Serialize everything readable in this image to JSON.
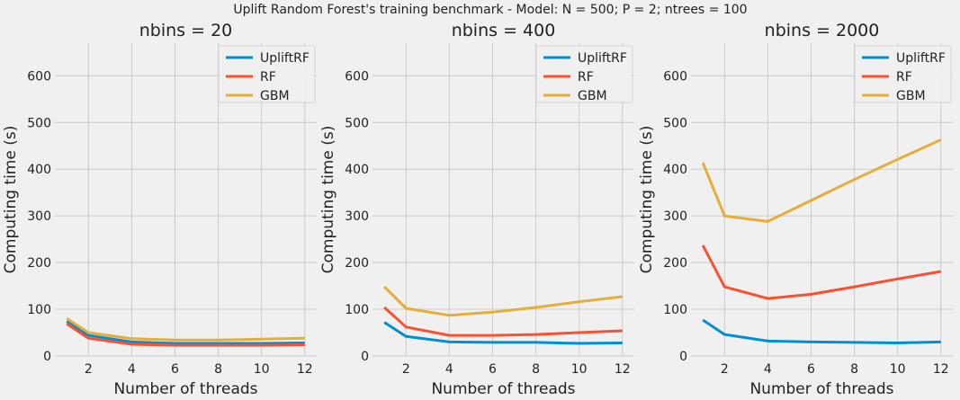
{
  "suptitle": "Uplift Random Forest's training benchmark - Model: N = 500; P = 2; ntrees = 100",
  "colors": {
    "UpliftRF": "#008fd5",
    "RF": "#fc4f30",
    "GBM": "#e5ae38",
    "background": "#f0f0f0",
    "grid": "#cbcbcb"
  },
  "chart_data": [
    {
      "type": "line",
      "title": "nbins = 20",
      "xlabel": "Number of threads",
      "ylabel": "Computing time (s)",
      "x": [
        1,
        2,
        4,
        6,
        8,
        10,
        12
      ],
      "xticks": [
        2,
        4,
        6,
        8,
        10,
        12
      ],
      "yticks": [
        0,
        100,
        200,
        300,
        400,
        500,
        600
      ],
      "xlim": [
        0.45,
        12.55
      ],
      "ylim": [
        0,
        670
      ],
      "legend": "top-right",
      "grid": true,
      "series": [
        {
          "name": "UpliftRF",
          "values": [
            74,
            44,
            30,
            27,
            27,
            27,
            28
          ]
        },
        {
          "name": "RF",
          "values": [
            69,
            38,
            25,
            23,
            23,
            23,
            24
          ]
        },
        {
          "name": "GBM",
          "values": [
            80,
            50,
            37,
            34,
            34,
            36,
            38
          ]
        }
      ]
    },
    {
      "type": "line",
      "title": "nbins = 400",
      "xlabel": "Number of threads",
      "ylabel": "Computing time (s)",
      "x": [
        1,
        2,
        4,
        6,
        8,
        10,
        12
      ],
      "xticks": [
        2,
        4,
        6,
        8,
        10,
        12
      ],
      "yticks": [
        0,
        100,
        200,
        300,
        400,
        500,
        600
      ],
      "xlim": [
        0.45,
        12.55
      ],
      "ylim": [
        0,
        670
      ],
      "legend": "top-right",
      "grid": true,
      "series": [
        {
          "name": "UpliftRF",
          "values": [
            72,
            42,
            30,
            29,
            29,
            27,
            28
          ]
        },
        {
          "name": "RF",
          "values": [
            104,
            62,
            44,
            44,
            46,
            50,
            54
          ]
        },
        {
          "name": "GBM",
          "values": [
            148,
            102,
            87,
            94,
            104,
            116,
            127
          ]
        }
      ]
    },
    {
      "type": "line",
      "title": "nbins = 2000",
      "xlabel": "Number of threads",
      "ylabel": "Computing time (s)",
      "x": [
        1,
        2,
        4,
        6,
        8,
        10,
        12
      ],
      "xticks": [
        2,
        4,
        6,
        8,
        10,
        12
      ],
      "yticks": [
        0,
        100,
        200,
        300,
        400,
        500,
        600
      ],
      "xlim": [
        0.45,
        12.55
      ],
      "ylim": [
        0,
        670
      ],
      "legend": "top-right",
      "grid": true,
      "series": [
        {
          "name": "UpliftRF",
          "values": [
            77,
            46,
            32,
            30,
            29,
            28,
            30
          ]
        },
        {
          "name": "RF",
          "values": [
            237,
            148,
            123,
            132,
            148,
            165,
            181
          ]
        },
        {
          "name": "GBM",
          "values": [
            414,
            300,
            288,
            333,
            378,
            421,
            463
          ]
        }
      ]
    }
  ]
}
